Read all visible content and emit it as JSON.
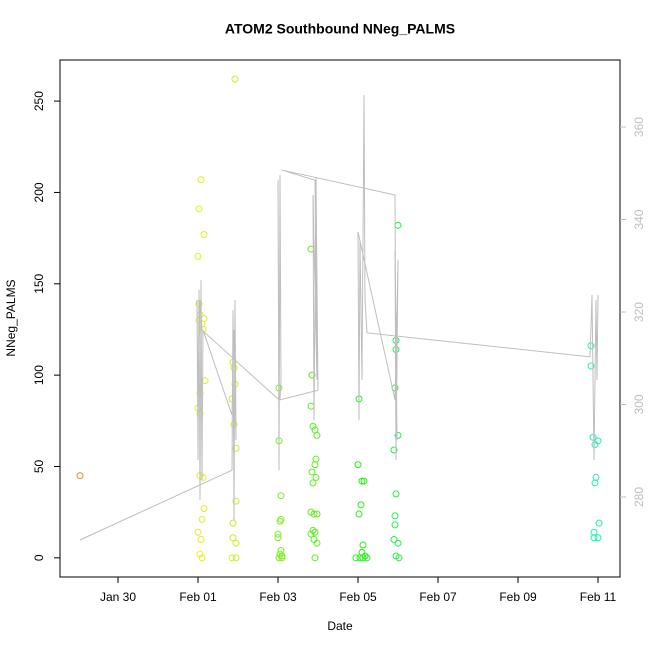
{
  "chart_data": {
    "type": "scatter",
    "title": "ATOM2 Southbound NNeg_PALMS",
    "xlabel": "Date",
    "ylabel": "NNeg_PALMS",
    "xlim": [
      28.55,
      42.55
    ],
    "ylim": [
      -10.5,
      272.5
    ],
    "y2lim": [
      262.7,
      374.5
    ],
    "xticks": [
      {
        "value": 30,
        "label": "Jan 30"
      },
      {
        "value": 32,
        "label": "Feb 01"
      },
      {
        "value": 34,
        "label": "Feb 03"
      },
      {
        "value": 36,
        "label": "Feb 05"
      },
      {
        "value": 38,
        "label": "Feb 07"
      },
      {
        "value": 40,
        "label": "Feb 09"
      },
      {
        "value": 42,
        "label": "Feb 11"
      }
    ],
    "yticks": [
      0,
      50,
      100,
      150,
      200,
      250
    ],
    "y2ticks": [
      280,
      300,
      320,
      340,
      360
    ],
    "y2color": "#bebebe",
    "series": [
      {
        "color": "#f08c1e",
        "x": [
          29.05
        ],
        "values": [
          45
        ]
      },
      {
        "color": "#e2f01e",
        "x": [
          32.075,
          32.025,
          32.15,
          32.0,
          32.025,
          32.05,
          32.15,
          32.025,
          32.1,
          32.125,
          32.175,
          32.05,
          32.0,
          32.05,
          32.05,
          32.125,
          32.15,
          32.1,
          32.0,
          32.075,
          32.05,
          32.1
        ],
        "values": [
          207,
          191,
          177,
          165,
          139,
          133,
          131,
          130,
          128,
          125,
          97,
          90,
          82,
          79,
          45,
          44,
          27,
          21,
          14,
          10,
          2,
          0
        ]
      },
      {
        "color": "#c6f01e",
        "x": [
          32.925,
          32.875,
          32.9,
          32.925,
          32.85,
          32.9,
          32.95,
          32.95,
          32.875,
          32.875,
          32.95,
          32.85,
          32.95
        ],
        "values": [
          262,
          107,
          104,
          95,
          87,
          73,
          60,
          31,
          19,
          11,
          8,
          0,
          0
        ]
      },
      {
        "color": "#7cf01e",
        "x": [
          34.025,
          34.025,
          34.075,
          34.075,
          34.05,
          34.0,
          34.0,
          34.075,
          34.05,
          34.1,
          34.025,
          34.1
        ],
        "values": [
          93,
          64,
          34,
          21,
          20,
          13,
          11,
          4,
          2,
          1,
          0,
          0
        ]
      },
      {
        "color": "#5cf01e",
        "x": [
          34.825,
          34.85,
          34.825,
          34.875,
          34.925,
          34.975,
          34.95,
          34.925,
          34.85,
          34.95,
          34.875,
          34.825,
          34.9,
          34.975,
          34.875,
          34.925,
          34.825,
          34.9,
          34.975,
          34.925
        ],
        "values": [
          169,
          100,
          83,
          72,
          70,
          67,
          54,
          51,
          47,
          44,
          41,
          25,
          24,
          24,
          15,
          14,
          13,
          10,
          8,
          0
        ]
      },
      {
        "color": "#28f01e",
        "x": [
          36.025,
          36.0,
          36.1,
          36.15,
          36.075,
          36.025,
          36.125,
          36.1,
          36.175,
          35.95,
          36.05,
          36.125,
          36.225
        ],
        "values": [
          87,
          51,
          42,
          42,
          29,
          24,
          7,
          3,
          1,
          0,
          0,
          0,
          0
        ]
      },
      {
        "color": "#1ef046",
        "x": [
          37.0,
          36.95,
          36.95,
          36.925,
          37.0,
          36.9,
          36.95,
          36.925,
          36.925,
          36.9,
          37.0,
          36.95,
          37.025
        ],
        "values": [
          182,
          119,
          114,
          93,
          67,
          59,
          35,
          23,
          18,
          10,
          8,
          1,
          0
        ]
      },
      {
        "color": "#1ef0b4",
        "x": [
          41.825,
          41.825,
          41.875,
          42.0,
          41.925,
          41.95,
          41.925,
          42.025,
          41.9,
          41.9,
          42.0
        ],
        "values": [
          116,
          105,
          66,
          64,
          62,
          44,
          41,
          19,
          14,
          11,
          11
        ]
      },
      {
        "type": "line",
        "axis": "y2",
        "color": "#bebebe",
        "x": [
          29.05,
          32.85,
          32.875,
          32.9,
          32.925,
          32.95,
          32.9,
          32.85,
          32.125,
          32.1,
          32.075,
          32.05,
          32.025,
          32.0,
          31.975,
          32.0,
          32.05,
          32.1,
          34.025,
          34.0,
          34.025,
          34.05,
          34.075,
          34.05,
          35.0,
          34.95,
          34.9,
          34.875,
          34.975,
          34.925,
          34.1,
          36.925,
          36.95,
          36.975,
          36.925,
          36.95,
          37.0,
          36.925,
          36.0,
          36.025,
          36.05,
          36.1,
          36.15,
          36.175,
          36.225,
          41.8,
          41.85,
          41.9,
          41.95,
          41.975,
          42.0
        ],
        "values": [
          270.7,
          285.8,
          320.4,
          275.0,
          322.6,
          292.3,
          316.1,
          297.7,
          316.1,
          283.7,
          326.9,
          279.4,
          324.8,
          288.0,
          322.6,
          296.6,
          322.6,
          316.1,
          301.0,
          348.5,
          285.8,
          349.6,
          305.3,
          301.0,
          303.1,
          349.0,
          296.6,
          345.3,
          305.3,
          348.5,
          350.7,
          345.3,
          303.1,
          292.3,
          333.4,
          288.0,
          331.2,
          301.0,
          337.3,
          296.6,
          335.6,
          305.3,
          366.9,
          322.6,
          315.5,
          310.3,
          323.7,
          288.0,
          322.6,
          305.3,
          323.7
        ]
      }
    ]
  }
}
